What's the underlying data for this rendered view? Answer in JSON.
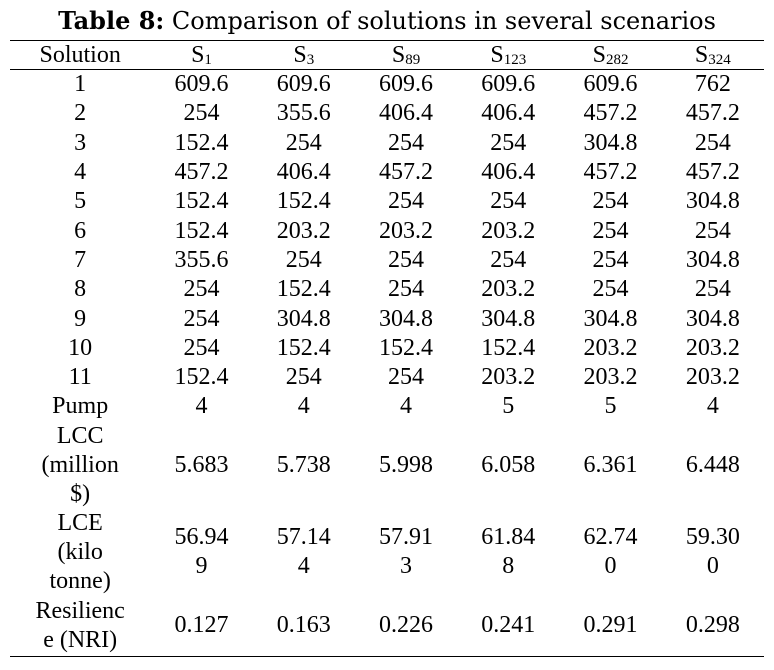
{
  "caption": {
    "label": "Table 8:",
    "text": " Comparison of solutions in several scenarios"
  },
  "header": {
    "first": "Solution",
    "scenarios": [
      {
        "main": "S",
        "sub": "1"
      },
      {
        "main": "S",
        "sub": "3"
      },
      {
        "main": "S",
        "sub": "89"
      },
      {
        "main": "S",
        "sub": "123"
      },
      {
        "main": "S",
        "sub": "282"
      },
      {
        "main": "S",
        "sub": "324"
      }
    ]
  },
  "rows": [
    {
      "label": "1",
      "values": [
        "609.6",
        "609.6",
        "609.6",
        "609.6",
        "609.6",
        "762"
      ]
    },
    {
      "label": "2",
      "values": [
        "254",
        "355.6",
        "406.4",
        "406.4",
        "457.2",
        "457.2"
      ]
    },
    {
      "label": "3",
      "values": [
        "152.4",
        "254",
        "254",
        "254",
        "304.8",
        "254"
      ]
    },
    {
      "label": "4",
      "values": [
        "457.2",
        "406.4",
        "457.2",
        "406.4",
        "457.2",
        "457.2"
      ]
    },
    {
      "label": "5",
      "values": [
        "152.4",
        "152.4",
        "254",
        "254",
        "254",
        "304.8"
      ]
    },
    {
      "label": "6",
      "values": [
        "152.4",
        "203.2",
        "203.2",
        "203.2",
        "254",
        "254"
      ]
    },
    {
      "label": "7",
      "values": [
        "355.6",
        "254",
        "254",
        "254",
        "254",
        "304.8"
      ]
    },
    {
      "label": "8",
      "values": [
        "254",
        "152.4",
        "254",
        "203.2",
        "254",
        "254"
      ]
    },
    {
      "label": "9",
      "values": [
        "254",
        "304.8",
        "304.8",
        "304.8",
        "304.8",
        "304.8"
      ]
    },
    {
      "label": "10",
      "values": [
        "254",
        "152.4",
        "152.4",
        "152.4",
        "203.2",
        "203.2"
      ]
    },
    {
      "label": "11",
      "values": [
        "152.4",
        "254",
        "254",
        "203.2",
        "203.2",
        "203.2"
      ]
    },
    {
      "label": "Pump",
      "values": [
        "4",
        "4",
        "4",
        "5",
        "5",
        "4"
      ]
    }
  ],
  "lcc": {
    "label_lines": [
      "LCC",
      "(million",
      "$)"
    ],
    "values": [
      "5.683",
      "5.738",
      "5.998",
      "6.058",
      "6.361",
      "6.448"
    ]
  },
  "lce": {
    "label_lines": [
      "LCE",
      "(kilo",
      "tonne)"
    ],
    "values": [
      [
        "56.94",
        "9"
      ],
      [
        "57.14",
        "4"
      ],
      [
        "57.91",
        "3"
      ],
      [
        "61.84",
        "8"
      ],
      [
        "62.74",
        "0"
      ],
      [
        "59.30",
        "0"
      ]
    ]
  },
  "resilience": {
    "label_lines": [
      "Resilienc",
      "e (NRI)"
    ],
    "values": [
      "0.127",
      "0.163",
      "0.226",
      "0.241",
      "0.291",
      "0.298"
    ]
  }
}
